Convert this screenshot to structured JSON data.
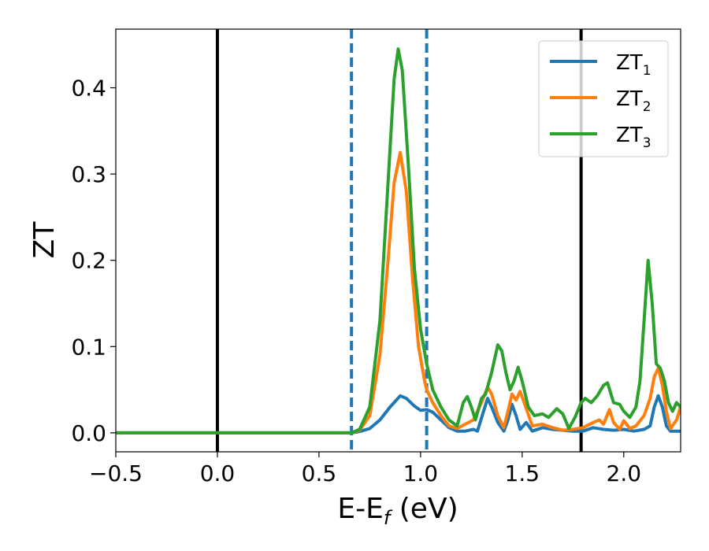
{
  "chart_data": {
    "type": "line",
    "xlabel": {
      "main": "E-E",
      "sub": "f",
      "tail": " (eV)"
    },
    "ylabel": "ZT",
    "xlim": [
      -0.5,
      2.28
    ],
    "ylim": [
      -0.022,
      0.468
    ],
    "x_ticks": [
      -0.5,
      0.0,
      0.5,
      1.0,
      1.5,
      2.0
    ],
    "x_tick_labels": [
      "−0.5",
      "0.0",
      "0.5",
      "1.0",
      "1.5",
      "2.0"
    ],
    "y_ticks": [
      0.0,
      0.1,
      0.2,
      0.3,
      0.4
    ],
    "y_tick_labels": [
      "0.0",
      "0.1",
      "0.2",
      "0.3",
      "0.4"
    ],
    "grid": false,
    "legend_position": "top-right",
    "vertical_lines": [
      {
        "x": 0.0,
        "style": "solid",
        "color": "#000000"
      },
      {
        "x": 1.79,
        "style": "solid",
        "color": "#000000"
      },
      {
        "x": 0.66,
        "style": "dashed",
        "color": "#1f77b4"
      },
      {
        "x": 1.03,
        "style": "dashed",
        "color": "#1f77b4"
      }
    ],
    "series": [
      {
        "name": "ZT",
        "subscript": "1",
        "color": "#1f77b4",
        "points": [
          [
            -0.5,
            0
          ],
          [
            0.5,
            0
          ],
          [
            0.6,
            0
          ],
          [
            0.66,
            0
          ],
          [
            0.7,
            0.0015
          ],
          [
            0.75,
            0.005
          ],
          [
            0.8,
            0.015
          ],
          [
            0.85,
            0.03
          ],
          [
            0.9,
            0.043
          ],
          [
            0.93,
            0.04
          ],
          [
            0.97,
            0.031
          ],
          [
            1.0,
            0.026
          ],
          [
            1.03,
            0.027
          ],
          [
            1.06,
            0.024
          ],
          [
            1.1,
            0.015
          ],
          [
            1.14,
            0.006
          ],
          [
            1.18,
            0.002
          ],
          [
            1.22,
            0.002
          ],
          [
            1.26,
            0.004
          ],
          [
            1.28,
            0.002
          ],
          [
            1.31,
            0.025
          ],
          [
            1.33,
            0.04
          ],
          [
            1.35,
            0.03
          ],
          [
            1.38,
            0.012
          ],
          [
            1.41,
            0.002
          ],
          [
            1.43,
            0.015
          ],
          [
            1.45,
            0.033
          ],
          [
            1.47,
            0.02
          ],
          [
            1.49,
            0.004
          ],
          [
            1.52,
            0.012
          ],
          [
            1.55,
            0.002
          ],
          [
            1.6,
            0.006
          ],
          [
            1.65,
            0.004
          ],
          [
            1.7,
            0.003
          ],
          [
            1.75,
            0.002
          ],
          [
            1.8,
            0.002
          ],
          [
            1.85,
            0.006
          ],
          [
            1.9,
            0.004
          ],
          [
            1.95,
            0.003
          ],
          [
            2.0,
            0.004
          ],
          [
            2.05,
            0.002
          ],
          [
            2.1,
            0.004
          ],
          [
            2.13,
            0.008
          ],
          [
            2.15,
            0.03
          ],
          [
            2.17,
            0.043
          ],
          [
            2.19,
            0.03
          ],
          [
            2.21,
            0.008
          ],
          [
            2.23,
            0.002
          ],
          [
            2.28,
            0.002
          ]
        ]
      },
      {
        "name": "ZT",
        "subscript": "2",
        "color": "#ff7f0e",
        "points": [
          [
            -0.5,
            0
          ],
          [
            0.5,
            0
          ],
          [
            0.6,
            0
          ],
          [
            0.66,
            0
          ],
          [
            0.7,
            0.003
          ],
          [
            0.75,
            0.02
          ],
          [
            0.8,
            0.09
          ],
          [
            0.84,
            0.2
          ],
          [
            0.87,
            0.29
          ],
          [
            0.9,
            0.325
          ],
          [
            0.93,
            0.28
          ],
          [
            0.96,
            0.18
          ],
          [
            0.99,
            0.1
          ],
          [
            1.02,
            0.06
          ],
          [
            1.03,
            0.05
          ],
          [
            1.06,
            0.035
          ],
          [
            1.1,
            0.02
          ],
          [
            1.14,
            0.008
          ],
          [
            1.18,
            0.005
          ],
          [
            1.22,
            0.01
          ],
          [
            1.26,
            0.015
          ],
          [
            1.3,
            0.035
          ],
          [
            1.33,
            0.053
          ],
          [
            1.35,
            0.045
          ],
          [
            1.38,
            0.02
          ],
          [
            1.41,
            0.006
          ],
          [
            1.43,
            0.025
          ],
          [
            1.45,
            0.045
          ],
          [
            1.47,
            0.038
          ],
          [
            1.49,
            0.048
          ],
          [
            1.51,
            0.035
          ],
          [
            1.55,
            0.008
          ],
          [
            1.6,
            0.01
          ],
          [
            1.65,
            0.006
          ],
          [
            1.7,
            0.003
          ],
          [
            1.75,
            0.004
          ],
          [
            1.8,
            0.006
          ],
          [
            1.85,
            0.012
          ],
          [
            1.88,
            0.015
          ],
          [
            1.9,
            0.01
          ],
          [
            1.93,
            0.027
          ],
          [
            1.95,
            0.012
          ],
          [
            1.98,
            0.004
          ],
          [
            2.0,
            0.014
          ],
          [
            2.03,
            0.005
          ],
          [
            2.06,
            0.008
          ],
          [
            2.1,
            0.02
          ],
          [
            2.13,
            0.04
          ],
          [
            2.15,
            0.065
          ],
          [
            2.17,
            0.075
          ],
          [
            2.19,
            0.055
          ],
          [
            2.21,
            0.025
          ],
          [
            2.23,
            0.005
          ],
          [
            2.26,
            0.015
          ],
          [
            2.28,
            0.03
          ]
        ]
      },
      {
        "name": "ZT",
        "subscript": "3",
        "color": "#2ca02c",
        "points": [
          [
            -0.5,
            0
          ],
          [
            0.5,
            0
          ],
          [
            0.6,
            0
          ],
          [
            0.66,
            0
          ],
          [
            0.7,
            0.004
          ],
          [
            0.75,
            0.03
          ],
          [
            0.8,
            0.13
          ],
          [
            0.84,
            0.29
          ],
          [
            0.87,
            0.41
          ],
          [
            0.89,
            0.445
          ],
          [
            0.91,
            0.42
          ],
          [
            0.94,
            0.31
          ],
          [
            0.97,
            0.19
          ],
          [
            1.0,
            0.12
          ],
          [
            1.03,
            0.08
          ],
          [
            1.06,
            0.05
          ],
          [
            1.1,
            0.03
          ],
          [
            1.14,
            0.015
          ],
          [
            1.18,
            0.008
          ],
          [
            1.21,
            0.035
          ],
          [
            1.23,
            0.042
          ],
          [
            1.25,
            0.03
          ],
          [
            1.27,
            0.015
          ],
          [
            1.3,
            0.04
          ],
          [
            1.32,
            0.045
          ],
          [
            1.35,
            0.07
          ],
          [
            1.38,
            0.102
          ],
          [
            1.4,
            0.095
          ],
          [
            1.42,
            0.07
          ],
          [
            1.44,
            0.05
          ],
          [
            1.46,
            0.06
          ],
          [
            1.48,
            0.076
          ],
          [
            1.5,
            0.06
          ],
          [
            1.53,
            0.03
          ],
          [
            1.56,
            0.02
          ],
          [
            1.6,
            0.022
          ],
          [
            1.63,
            0.018
          ],
          [
            1.67,
            0.028
          ],
          [
            1.7,
            0.022
          ],
          [
            1.73,
            0.005
          ],
          [
            1.76,
            0.018
          ],
          [
            1.79,
            0.035
          ],
          [
            1.81,
            0.04
          ],
          [
            1.84,
            0.035
          ],
          [
            1.87,
            0.043
          ],
          [
            1.9,
            0.055
          ],
          [
            1.92,
            0.058
          ],
          [
            1.95,
            0.035
          ],
          [
            1.98,
            0.033
          ],
          [
            2.0,
            0.025
          ],
          [
            2.03,
            0.018
          ],
          [
            2.06,
            0.03
          ],
          [
            2.08,
            0.06
          ],
          [
            2.1,
            0.13
          ],
          [
            2.12,
            0.2
          ],
          [
            2.14,
            0.15
          ],
          [
            2.16,
            0.08
          ],
          [
            2.18,
            0.075
          ],
          [
            2.2,
            0.06
          ],
          [
            2.22,
            0.035
          ],
          [
            2.24,
            0.025
          ],
          [
            2.26,
            0.035
          ],
          [
            2.28,
            0.03
          ]
        ]
      }
    ]
  }
}
